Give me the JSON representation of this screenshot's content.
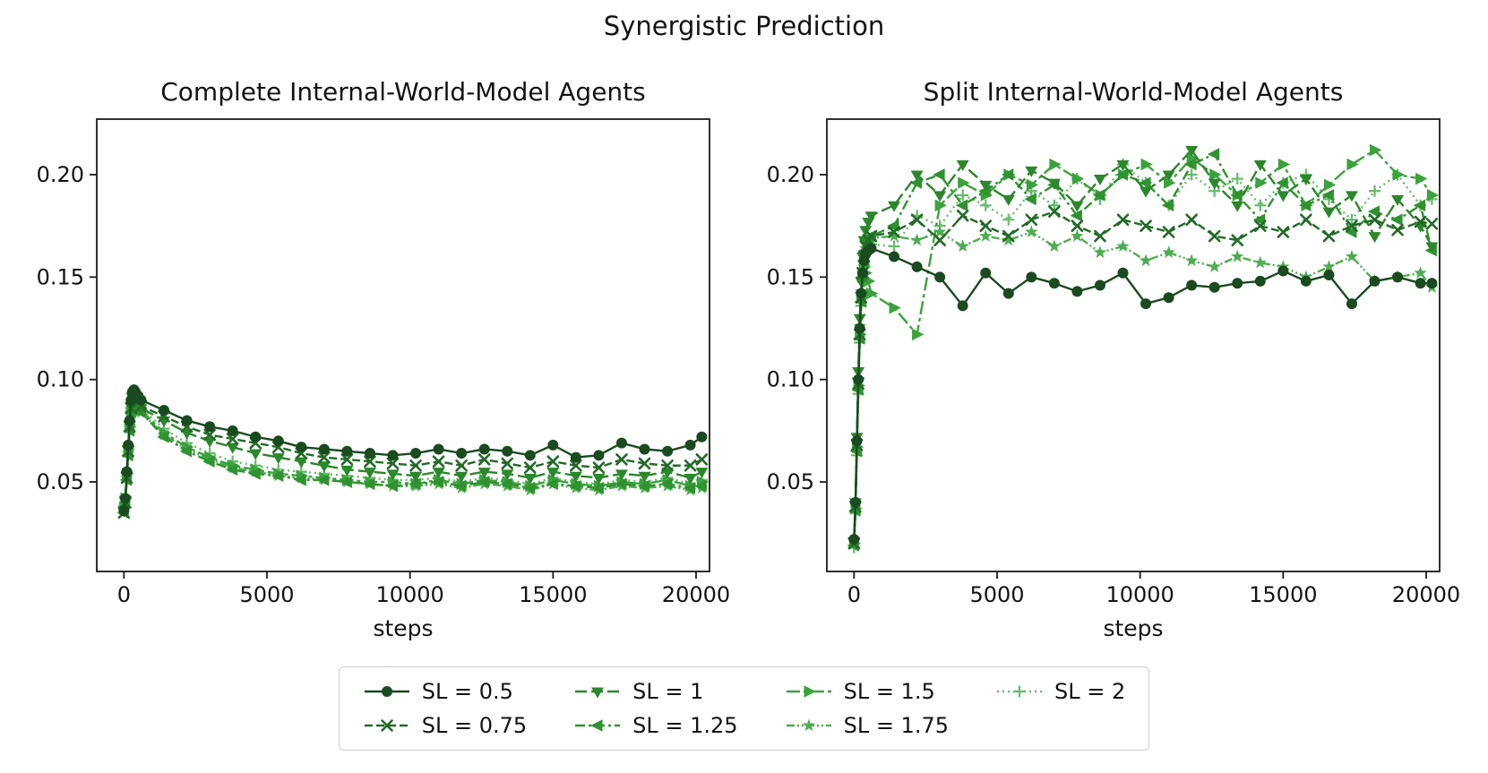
{
  "figure": {
    "title": "Synergistic Prediction"
  },
  "legend": {
    "entries": [
      {
        "label": "SL = 0.5",
        "marker": "circle",
        "color": "#1a4a20",
        "dash": ""
      },
      {
        "label": "SL = 0.75",
        "marker": "x",
        "color": "#226b27",
        "dash": "9,4"
      },
      {
        "label": "SL = 1",
        "marker": "triangle-down",
        "color": "#2b872b",
        "dash": "13,5"
      },
      {
        "label": "SL = 1.25",
        "marker": "triangle-left",
        "color": "#2f922f",
        "dash": "11,4,3,4"
      },
      {
        "label": "SL = 1.5",
        "marker": "triangle-right",
        "color": "#3ba23c",
        "dash": "15,4,4,4"
      },
      {
        "label": "SL = 1.75",
        "marker": "star",
        "color": "#4ead51",
        "dash": "9,3,2,3,2,3"
      },
      {
        "label": "SL = 2",
        "marker": "plus",
        "color": "#68ba6c",
        "dash": "2,4"
      }
    ]
  },
  "chart_data": [
    {
      "type": "line",
      "title": "Complete Internal-World-Model Agents",
      "xlabel": "steps",
      "xticks": [
        0,
        5000,
        10000,
        15000,
        20000
      ],
      "yticks": [
        0.05,
        0.1,
        0.15,
        0.2
      ],
      "xlim": [
        -950,
        20470
      ],
      "ylim": [
        0.0063,
        0.2271
      ],
      "grid": false,
      "x": [
        0,
        50,
        100,
        150,
        200,
        250,
        300,
        350,
        400,
        500,
        600,
        1400,
        2200,
        3000,
        3800,
        4600,
        5400,
        6200,
        7000,
        7800,
        8600,
        9400,
        10200,
        11000,
        11800,
        12600,
        13400,
        14200,
        15000,
        15800,
        16600,
        17400,
        18200,
        19000,
        19800,
        20200
      ],
      "series": [
        {
          "name": "SL = 0.5",
          "marker": "circle",
          "color": "#1a4a20",
          "dash": "",
          "y": [
            0.036,
            0.042,
            0.055,
            0.068,
            0.08,
            0.09,
            0.094,
            0.095,
            0.094,
            0.092,
            0.09,
            0.085,
            0.08,
            0.077,
            0.075,
            0.072,
            0.07,
            0.067,
            0.066,
            0.065,
            0.064,
            0.063,
            0.064,
            0.066,
            0.064,
            0.066,
            0.065,
            0.063,
            0.068,
            0.062,
            0.063,
            0.069,
            0.066,
            0.065,
            0.068,
            0.072
          ]
        },
        {
          "name": "SL = 0.75",
          "marker": "x",
          "color": "#226b27",
          "dash": "9,4",
          "y": [
            0.035,
            0.04,
            0.052,
            0.065,
            0.077,
            0.086,
            0.091,
            0.092,
            0.091,
            0.089,
            0.087,
            0.082,
            0.077,
            0.073,
            0.071,
            0.069,
            0.067,
            0.064,
            0.062,
            0.061,
            0.06,
            0.059,
            0.058,
            0.06,
            0.058,
            0.061,
            0.059,
            0.057,
            0.06,
            0.058,
            0.057,
            0.061,
            0.059,
            0.058,
            0.058,
            0.061
          ]
        },
        {
          "name": "SL = 1",
          "marker": "triangle-down",
          "color": "#2b872b",
          "dash": "13,5",
          "y": [
            0.036,
            0.041,
            0.053,
            0.066,
            0.078,
            0.087,
            0.091,
            0.091,
            0.09,
            0.088,
            0.086,
            0.08,
            0.074,
            0.07,
            0.067,
            0.064,
            0.062,
            0.06,
            0.058,
            0.056,
            0.055,
            0.054,
            0.053,
            0.055,
            0.053,
            0.055,
            0.054,
            0.052,
            0.055,
            0.053,
            0.052,
            0.054,
            0.053,
            0.055,
            0.052,
            0.055
          ]
        },
        {
          "name": "SL = 1.25",
          "marker": "triangle-left",
          "color": "#2f922f",
          "dash": "11,4,3,4",
          "y": [
            0.035,
            0.04,
            0.051,
            0.063,
            0.075,
            0.084,
            0.088,
            0.089,
            0.088,
            0.086,
            0.084,
            0.072,
            0.065,
            0.06,
            0.056,
            0.054,
            0.053,
            0.051,
            0.051,
            0.05,
            0.049,
            0.048,
            0.049,
            0.05,
            0.048,
            0.05,
            0.049,
            0.047,
            0.049,
            0.048,
            0.047,
            0.049,
            0.048,
            0.049,
            0.047,
            0.048
          ]
        },
        {
          "name": "SL = 1.5",
          "marker": "triangle-right",
          "color": "#3ba23c",
          "dash": "15,4,4,4",
          "y": [
            0.037,
            0.042,
            0.054,
            0.066,
            0.077,
            0.085,
            0.089,
            0.09,
            0.089,
            0.087,
            0.085,
            0.074,
            0.067,
            0.062,
            0.058,
            0.056,
            0.054,
            0.053,
            0.052,
            0.051,
            0.05,
            0.05,
            0.049,
            0.051,
            0.049,
            0.051,
            0.05,
            0.048,
            0.051,
            0.049,
            0.048,
            0.05,
            0.049,
            0.051,
            0.048,
            0.05
          ]
        },
        {
          "name": "SL = 1.75",
          "marker": "star",
          "color": "#4ead51",
          "dash": "9,3,2,3,2,3",
          "y": [
            0.036,
            0.041,
            0.052,
            0.064,
            0.076,
            0.084,
            0.088,
            0.089,
            0.088,
            0.086,
            0.084,
            0.073,
            0.066,
            0.061,
            0.057,
            0.055,
            0.053,
            0.052,
            0.051,
            0.05,
            0.049,
            0.048,
            0.048,
            0.049,
            0.047,
            0.049,
            0.048,
            0.046,
            0.049,
            0.047,
            0.046,
            0.048,
            0.047,
            0.048,
            0.046,
            0.047
          ]
        },
        {
          "name": "SL = 2",
          "marker": "plus",
          "color": "#68ba6c",
          "dash": "2,4",
          "y": [
            0.038,
            0.043,
            0.055,
            0.067,
            0.078,
            0.086,
            0.09,
            0.091,
            0.09,
            0.088,
            0.086,
            0.076,
            0.069,
            0.064,
            0.06,
            0.058,
            0.056,
            0.055,
            0.054,
            0.053,
            0.052,
            0.051,
            0.051,
            0.052,
            0.05,
            0.052,
            0.051,
            0.049,
            0.052,
            0.05,
            0.049,
            0.051,
            0.05,
            0.052,
            0.049,
            0.051
          ]
        }
      ]
    },
    {
      "type": "line",
      "title": "Split Internal-World-Model Agents",
      "xlabel": "steps",
      "xticks": [
        0,
        5000,
        10000,
        15000,
        20000
      ],
      "yticks": [
        0.05,
        0.1,
        0.15,
        0.2
      ],
      "xlim": [
        -950,
        20470
      ],
      "ylim": [
        0.0063,
        0.2271
      ],
      "grid": false,
      "x": [
        0,
        50,
        100,
        150,
        200,
        250,
        300,
        350,
        400,
        500,
        600,
        1400,
        2200,
        3000,
        3800,
        4600,
        5400,
        6200,
        7000,
        7800,
        8600,
        9400,
        10200,
        11000,
        11800,
        12600,
        13400,
        14200,
        15000,
        15800,
        16600,
        17400,
        18200,
        19000,
        19800,
        20200
      ],
      "series": [
        {
          "name": "SL = 0.5",
          "marker": "circle",
          "color": "#1a4a20",
          "dash": "",
          "y": [
            0.022,
            0.04,
            0.07,
            0.1,
            0.125,
            0.142,
            0.152,
            0.158,
            0.161,
            0.163,
            0.164,
            0.16,
            0.155,
            0.15,
            0.136,
            0.152,
            0.142,
            0.15,
            0.147,
            0.143,
            0.146,
            0.152,
            0.137,
            0.14,
            0.146,
            0.145,
            0.147,
            0.148,
            0.153,
            0.148,
            0.151,
            0.137,
            0.148,
            0.15,
            0.147,
            0.147
          ]
        },
        {
          "name": "SL = 0.75",
          "marker": "x",
          "color": "#226b27",
          "dash": "9,4",
          "y": [
            0.02,
            0.038,
            0.068,
            0.098,
            0.122,
            0.14,
            0.152,
            0.16,
            0.165,
            0.168,
            0.17,
            0.172,
            0.178,
            0.168,
            0.18,
            0.175,
            0.17,
            0.178,
            0.182,
            0.175,
            0.17,
            0.178,
            0.175,
            0.172,
            0.178,
            0.17,
            0.168,
            0.175,
            0.172,
            0.178,
            0.17,
            0.175,
            0.178,
            0.173,
            0.177,
            0.176
          ]
        },
        {
          "name": "SL = 1",
          "marker": "triangle-down",
          "color": "#2b872b",
          "dash": "13,5",
          "y": [
            0.021,
            0.04,
            0.072,
            0.104,
            0.13,
            0.148,
            0.16,
            0.168,
            0.173,
            0.177,
            0.18,
            0.185,
            0.2,
            0.19,
            0.205,
            0.195,
            0.188,
            0.202,
            0.196,
            0.185,
            0.198,
            0.205,
            0.192,
            0.2,
            0.212,
            0.196,
            0.185,
            0.205,
            0.19,
            0.198,
            0.182,
            0.19,
            0.17,
            0.188,
            0.175,
            0.165
          ]
        },
        {
          "name": "SL = 1.25",
          "marker": "triangle-left",
          "color": "#2f922f",
          "dash": "11,4,3,4",
          "y": [
            0.019,
            0.036,
            0.065,
            0.095,
            0.12,
            0.138,
            0.15,
            0.158,
            0.163,
            0.167,
            0.17,
            0.175,
            0.196,
            0.2,
            0.185,
            0.192,
            0.2,
            0.188,
            0.195,
            0.18,
            0.19,
            0.2,
            0.196,
            0.185,
            0.205,
            0.21,
            0.19,
            0.178,
            0.196,
            0.185,
            0.19,
            0.172,
            0.182,
            0.178,
            0.185,
            0.163
          ]
        },
        {
          "name": "SL = 1.5",
          "marker": "triangle-right",
          "color": "#3ba23c",
          "dash": "15,4,4,4",
          "y": [
            0.02,
            0.037,
            0.067,
            0.097,
            0.122,
            0.14,
            0.15,
            0.155,
            0.152,
            0.148,
            0.142,
            0.135,
            0.122,
            0.185,
            0.196,
            0.19,
            0.2,
            0.195,
            0.205,
            0.198,
            0.19,
            0.2,
            0.205,
            0.196,
            0.208,
            0.2,
            0.19,
            0.196,
            0.205,
            0.185,
            0.195,
            0.205,
            0.212,
            0.2,
            0.198,
            0.19
          ]
        },
        {
          "name": "SL = 1.75",
          "marker": "star",
          "color": "#4ead51",
          "dash": "9,3,2,3,2,3",
          "y": [
            0.021,
            0.039,
            0.07,
            0.1,
            0.126,
            0.143,
            0.153,
            0.16,
            0.164,
            0.167,
            0.169,
            0.17,
            0.168,
            0.172,
            0.165,
            0.17,
            0.168,
            0.172,
            0.165,
            0.17,
            0.162,
            0.165,
            0.158,
            0.162,
            0.158,
            0.155,
            0.16,
            0.157,
            0.155,
            0.15,
            0.155,
            0.16,
            0.148,
            0.15,
            0.152,
            0.145
          ]
        },
        {
          "name": "SL = 2",
          "marker": "plus",
          "color": "#68ba6c",
          "dash": "2,4",
          "y": [
            0.018,
            0.035,
            0.063,
            0.093,
            0.118,
            0.136,
            0.148,
            0.156,
            0.161,
            0.164,
            0.166,
            0.165,
            0.18,
            0.175,
            0.19,
            0.185,
            0.178,
            0.192,
            0.185,
            0.198,
            0.188,
            0.205,
            0.196,
            0.185,
            0.2,
            0.192,
            0.198,
            0.185,
            0.196,
            0.2,
            0.188,
            0.178,
            0.192,
            0.2,
            0.185,
            0.188
          ]
        }
      ]
    }
  ]
}
